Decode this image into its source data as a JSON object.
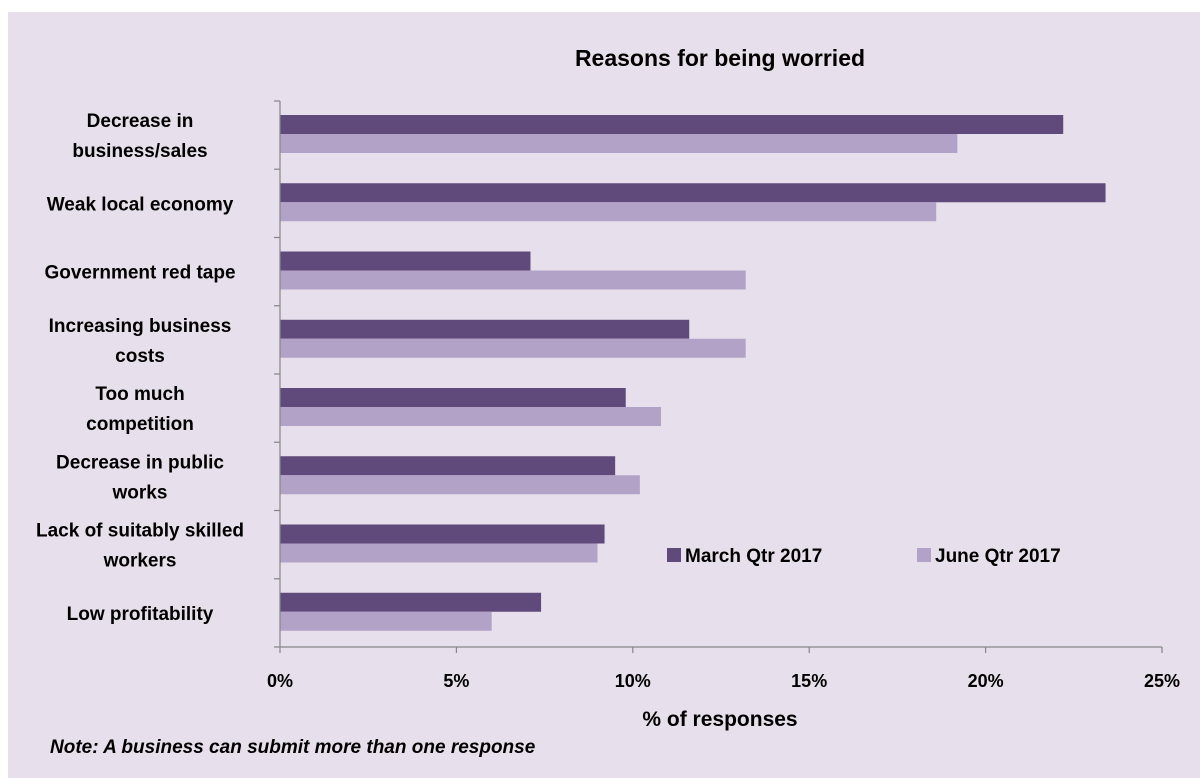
{
  "chart_data": {
    "type": "bar",
    "orientation": "horizontal",
    "title": "Reasons for being worried",
    "xlabel": "% of responses",
    "ylabel": "",
    "xlim": [
      0,
      25
    ],
    "x_ticks": [
      "0%",
      "5%",
      "10%",
      "15%",
      "20%",
      "25%"
    ],
    "categories": [
      [
        "Decrease in",
        "business/sales"
      ],
      [
        "Weak local economy"
      ],
      [
        "Government red tape"
      ],
      [
        "Increasing business",
        "costs"
      ],
      [
        "Too much",
        "competition"
      ],
      [
        "Decrease in public",
        "works"
      ],
      [
        "Lack of suitably skilled",
        "workers"
      ],
      [
        "Low profitability"
      ]
    ],
    "series": [
      {
        "name": "March Qtr 2017",
        "color": "#604a7b",
        "values": [
          22.2,
          23.4,
          7.1,
          11.6,
          9.8,
          9.5,
          9.2,
          7.4
        ]
      },
      {
        "name": "June Qtr 2017",
        "color": "#b3a2c7",
        "values": [
          19.2,
          18.6,
          13.2,
          13.2,
          10.8,
          10.2,
          9.0,
          6.0
        ]
      }
    ],
    "grid": false,
    "legend_position": "lower-right, inside plot"
  },
  "note": "Note: A business can submit more than one response",
  "colors": {
    "panel_background": "#e7dfeb",
    "axis": "#868686"
  }
}
